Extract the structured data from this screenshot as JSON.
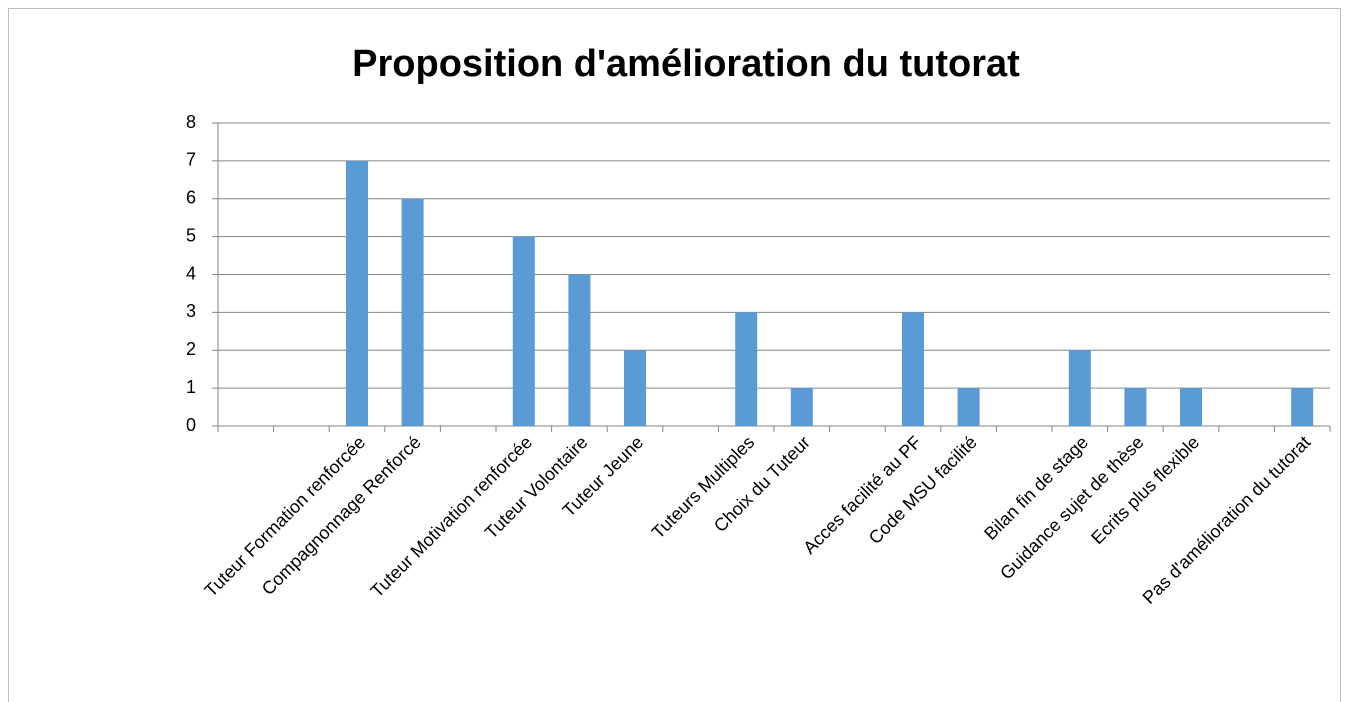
{
  "chart_data": {
    "type": "bar",
    "title": "Proposition d'amélioration du tutorat",
    "categories": [
      null,
      null,
      "Tuteur Formation renforcée",
      "Compagnonnage Renforcé",
      null,
      "Tuteur Motivation renforcée",
      "Tuteur Volontaire",
      "Tuteur Jeune",
      null,
      "Tuteurs Multiples",
      "Choix du Tuteur",
      null,
      "Acces facilité au PF",
      "Code MSU facilité",
      null,
      "Bilan fin de stage",
      "Guidance sujet de thèse",
      "Ecrits plus flexible",
      null,
      "Pas d'amélioration du tutorat"
    ],
    "values": [
      null,
      null,
      7,
      6,
      null,
      5,
      4,
      2,
      null,
      3,
      1,
      null,
      3,
      1,
      null,
      2,
      1,
      1,
      null,
      1
    ],
    "color": "#5b9bd5",
    "ylim": [
      0,
      8
    ],
    "yticks": [
      0,
      1,
      2,
      3,
      4,
      5,
      6,
      7,
      8
    ],
    "grid": true
  }
}
